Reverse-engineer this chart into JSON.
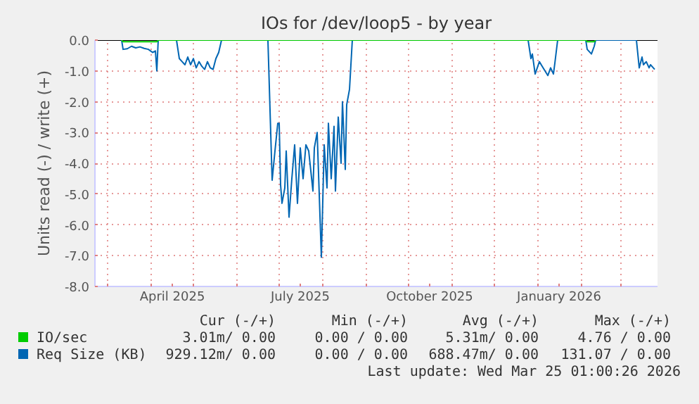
{
  "chart_data": {
    "type": "line",
    "title": "IOs for /dev/loop5 - by year",
    "ylabel": "Units read (-) / write (+)",
    "xlim": [
      "2025-02-20",
      "2026-03-27"
    ],
    "ylim": [
      -8.0,
      0.0
    ],
    "xticks": [
      {
        "value": "2025-03-01",
        "label": null
      },
      {
        "value": "2025-04-01",
        "label": null
      },
      {
        "value": "2025-04-16",
        "label": "April 2025"
      },
      {
        "value": "2025-05-01",
        "label": null
      },
      {
        "value": "2025-06-01",
        "label": null
      },
      {
        "value": "2025-07-01",
        "label": null
      },
      {
        "value": "2025-07-16",
        "label": "July 2025"
      },
      {
        "value": "2025-08-01",
        "label": null
      },
      {
        "value": "2025-09-01",
        "label": null
      },
      {
        "value": "2025-10-01",
        "label": null
      },
      {
        "value": "2025-10-16",
        "label": "October 2025"
      },
      {
        "value": "2025-11-01",
        "label": null
      },
      {
        "value": "2025-12-01",
        "label": null
      },
      {
        "value": "2026-01-01",
        "label": null
      },
      {
        "value": "2026-01-16",
        "label": "January 2026"
      },
      {
        "value": "2026-02-01",
        "label": null
      },
      {
        "value": "2026-03-01",
        "label": null
      }
    ],
    "yticks": [
      {
        "value": 0,
        "label": "0.0"
      },
      {
        "value": -1,
        "label": "-1.0"
      },
      {
        "value": -2,
        "label": "-2.0"
      },
      {
        "value": -3,
        "label": "-3.0"
      },
      {
        "value": -4,
        "label": "-4.0"
      },
      {
        "value": -5,
        "label": "-5.0"
      },
      {
        "value": -6,
        "label": "-6.0"
      },
      {
        "value": -7,
        "label": "-7.0"
      },
      {
        "value": -8,
        "label": "-8.0"
      }
    ],
    "grid": true,
    "legend": "bottom",
    "series": [
      {
        "name": "IO/sec",
        "color": "#00cc00",
        "x": [
          "2025-03-11",
          "2025-03-12",
          "2025-04-05",
          "2025-04-06",
          "2026-02-04",
          "2026-02-05",
          "2026-02-10",
          "2026-02-11"
        ],
        "values": [
          0,
          -0.05,
          -0.05,
          0,
          0,
          -0.05,
          -0.05,
          0
        ]
      },
      {
        "name": "Req Size (KB)",
        "color": "#0066b3",
        "x": [
          "2025-03-11",
          "2025-03-12",
          "2025-03-15",
          "2025-03-18",
          "2025-03-21",
          "2025-03-24",
          "2025-03-27",
          "2025-03-30",
          "2025-04-02",
          "2025-04-04",
          "2025-04-05",
          "2025-04-06",
          "2025-04-19",
          "2025-04-21",
          "2025-04-23",
          "2025-04-25",
          "2025-04-27",
          "2025-04-29",
          "2025-05-01",
          "2025-05-03",
          "2025-05-05",
          "2025-05-07",
          "2025-05-09",
          "2025-05-11",
          "2025-05-13",
          "2025-05-15",
          "2025-05-17",
          "2025-05-19",
          "2025-05-21",
          "2025-06-23",
          "2025-06-26",
          "2025-06-28",
          "2025-06-30",
          "2025-07-01",
          "2025-07-02",
          "2025-07-03",
          "2025-07-05",
          "2025-07-06",
          "2025-07-08",
          "2025-07-10",
          "2025-07-12",
          "2025-07-14",
          "2025-07-16",
          "2025-07-18",
          "2025-07-20",
          "2025-07-22",
          "2025-07-25",
          "2025-07-26",
          "2025-07-28",
          "2025-07-31",
          "2025-08-02",
          "2025-08-04",
          "2025-08-05",
          "2025-08-07",
          "2025-08-09",
          "2025-08-10",
          "2025-08-12",
          "2025-08-14",
          "2025-08-15",
          "2025-08-17",
          "2025-08-18",
          "2025-08-20",
          "2025-08-22",
          "2025-12-25",
          "2025-12-27",
          "2025-12-28",
          "2025-12-30",
          "2026-01-02",
          "2026-01-04",
          "2026-01-06",
          "2026-01-08",
          "2026-01-10",
          "2026-01-12",
          "2026-01-13",
          "2026-01-15",
          "2026-02-04",
          "2026-02-05",
          "2026-02-08",
          "2026-02-10",
          "2026-02-11",
          "2026-03-12",
          "2026-03-14",
          "2026-03-16",
          "2026-03-17",
          "2026-03-19",
          "2026-03-21",
          "2026-03-22",
          "2026-03-24",
          "2026-03-25"
        ],
        "values": [
          0,
          -0.3,
          -0.28,
          -0.2,
          -0.25,
          -0.22,
          -0.27,
          -0.3,
          -0.4,
          -0.35,
          -1.0,
          0,
          0,
          -0.6,
          -0.7,
          -0.8,
          -0.55,
          -0.8,
          -0.6,
          -0.9,
          -0.7,
          -0.85,
          -0.95,
          -0.7,
          -0.9,
          -0.95,
          -0.6,
          -0.4,
          0,
          0,
          -4.55,
          -3.6,
          -2.7,
          -2.7,
          -4.7,
          -5.3,
          -4.8,
          -3.6,
          -5.75,
          -4.5,
          -3.4,
          -5.3,
          -3.5,
          -4.5,
          -3.4,
          -3.6,
          -4.9,
          -3.5,
          -3.0,
          -7.05,
          -3.4,
          -4.8,
          -2.7,
          -4.5,
          -2.8,
          -4.9,
          -2.5,
          -4.0,
          -2.0,
          -4.2,
          -2.1,
          -1.6,
          0,
          0,
          -0.6,
          -0.45,
          -1.1,
          -0.7,
          -0.85,
          -1.0,
          -1.15,
          -0.9,
          -1.1,
          -0.75,
          0,
          0,
          -0.3,
          -0.45,
          -0.2,
          0,
          0,
          -0.9,
          -0.55,
          -0.8,
          -0.7,
          -0.9,
          -0.8,
          -0.9,
          -0.95
        ]
      }
    ],
    "annotations": [
      "Cur (-/+)",
      "Min (-/+)",
      "Avg (-/+)",
      "Max (-/+)",
      "3.01m/ 0.00",
      "0.00 / 0.00",
      "5.31m/ 0.00",
      "4.76 / 0.00",
      "929.12m/ 0.00",
      "0.00 / 0.00",
      "688.47m/ 0.00",
      "131.07 / 0.00",
      "Last update: Wed Mar 25 01:00:26 2026"
    ]
  }
}
